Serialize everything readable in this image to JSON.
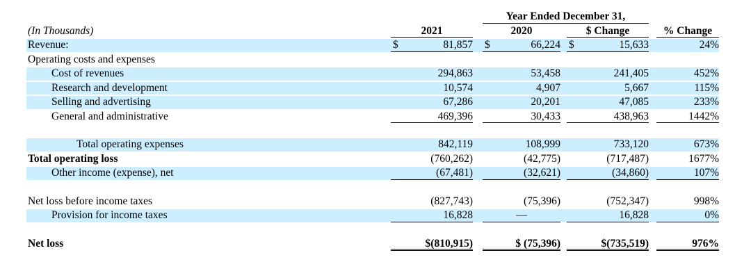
{
  "header": {
    "period_label": "Year Ended December 31,",
    "units_label": "(In Thousands)",
    "columns": [
      "2021",
      "2020",
      "$ Change",
      "% Change"
    ]
  },
  "rows": [
    {
      "label": "Revenue:",
      "c1": "81,857",
      "c1_cur": "$",
      "c2": "66,224",
      "c2_cur": "$",
      "c3": "15,633",
      "c3_cur": "$",
      "c4": "24%"
    },
    {
      "label": "Operating costs and expenses"
    },
    {
      "label": "Cost of revenues",
      "c1": "294,863",
      "c2": "53,458",
      "c3": "241,405",
      "c4": "452%"
    },
    {
      "label": "Research and development",
      "c1": "10,574",
      "c2": "4,907",
      "c3": "5,667",
      "c4": "115%"
    },
    {
      "label": "Selling and advertising",
      "c1": "67,286",
      "c2": "20,201",
      "c3": "47,085",
      "c4": "233%"
    },
    {
      "label": "General and administrative",
      "c1": "469,396",
      "c2": "30,433",
      "c3": "438,963",
      "c4": "1442%"
    },
    {
      "label": "Total operating expenses",
      "c1": "842,119",
      "c2": "108,999",
      "c3": "733,120",
      "c4": "673%"
    },
    {
      "label": "Total operating loss",
      "c1": "(760,262)",
      "c2": "(42,775)",
      "c3": "(717,487)",
      "c4": "1677%"
    },
    {
      "label": "Other income (expense), net",
      "c1": "(67,481)",
      "c2": "(32,621)",
      "c3": "(34,860)",
      "c4": "107%"
    },
    {
      "label": "Net loss before income taxes",
      "c1": "(827,743)",
      "c2": "(75,396)",
      "c3": "(752,347)",
      "c4": "998%"
    },
    {
      "label": "Provision for income taxes",
      "c1": "16,828",
      "c2": "—",
      "c3": "16,828",
      "c4": "0%"
    },
    {
      "label": "Net loss",
      "c1": "$(810,915)",
      "c2": "$ (75,396)",
      "c3": "$(735,519)",
      "c4": "976%"
    }
  ]
}
